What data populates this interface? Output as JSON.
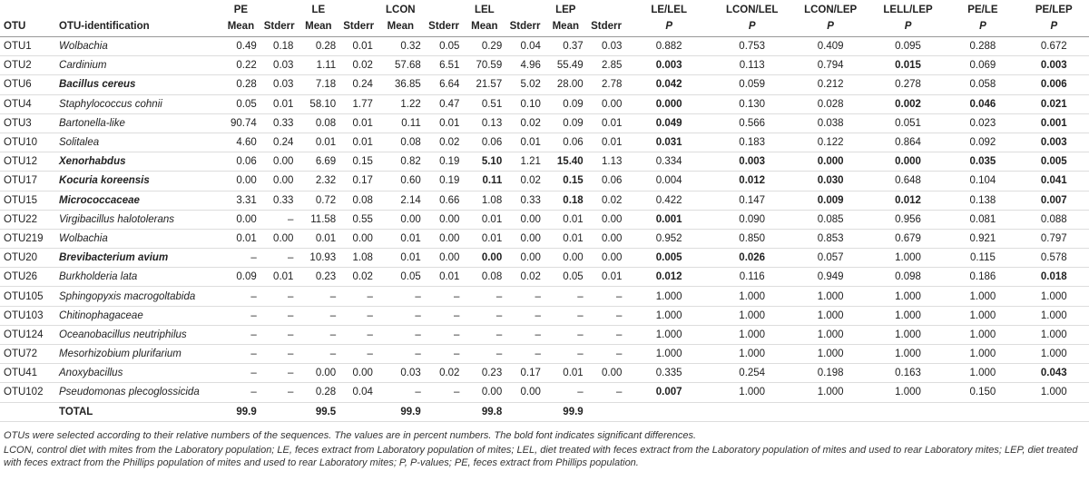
{
  "table": {
    "columns": [
      {
        "bottom": "OTU"
      },
      {
        "bottom": "OTU-identification"
      },
      {
        "top": "PE",
        "bottom": "Mean"
      },
      {
        "bottom": "Stderr"
      },
      {
        "top": "LE",
        "bottom": "Mean"
      },
      {
        "bottom": "Stderr"
      },
      {
        "top": "LCON",
        "bottom": "Mean"
      },
      {
        "bottom": "Stderr"
      },
      {
        "top": "LEL",
        "bottom": "Mean"
      },
      {
        "bottom": "Stderr"
      },
      {
        "top": "LEP",
        "bottom": "Mean"
      },
      {
        "bottom": "Stderr"
      },
      {
        "top": "LE/LEL",
        "bottom": "P"
      },
      {
        "top": "LCON/LEL",
        "bottom": "P"
      },
      {
        "top": "LCON/LEP",
        "bottom": "P"
      },
      {
        "top": "LELL/LEP",
        "bottom": "P"
      },
      {
        "top": "PE/LE",
        "bottom": "P"
      },
      {
        "top": "PE/LEP",
        "bottom": "P"
      }
    ],
    "rows": [
      {
        "otu": "OTU1",
        "name": "Wolbachia",
        "values": [
          "0.49",
          "0.18",
          "0.28",
          "0.01",
          "0.32",
          "0.05",
          "0.29",
          "0.04",
          "0.37",
          "0.03",
          "0.882",
          "0.753",
          "0.409",
          "0.095",
          "0.288",
          "0.672"
        ]
      },
      {
        "otu": "OTU2",
        "name": "Cardinium",
        "values": [
          "0.22",
          "0.03",
          "1.11",
          "0.02",
          "57.68",
          "6.51",
          "70.59",
          "4.96",
          "55.49",
          "2.85",
          {
            "text": "0.003",
            "bold": true
          },
          "0.113",
          "0.794",
          {
            "text": "0.015",
            "bold": true
          },
          "0.069",
          {
            "text": "0.003",
            "bold": true
          }
        ]
      },
      {
        "otu": "OTU6",
        "name": {
          "text": "Bacillus cereus",
          "bold": true
        },
        "values": [
          "0.28",
          "0.03",
          "7.18",
          "0.24",
          "36.85",
          "6.64",
          "21.57",
          "5.02",
          "28.00",
          "2.78",
          {
            "text": "0.042",
            "bold": true
          },
          "0.059",
          "0.212",
          "0.278",
          "0.058",
          {
            "text": "0.006",
            "bold": true
          }
        ]
      },
      {
        "otu": "OTU4",
        "name": "Staphylococcus cohnii",
        "values": [
          "0.05",
          "0.01",
          "58.10",
          "1.77",
          "1.22",
          "0.47",
          "0.51",
          "0.10",
          "0.09",
          "0.00",
          {
            "text": "0.000",
            "bold": true
          },
          "0.130",
          "0.028",
          {
            "text": "0.002",
            "bold": true
          },
          {
            "text": "0.046",
            "bold": true
          },
          {
            "text": "0.021",
            "bold": true
          }
        ]
      },
      {
        "otu": "OTU3",
        "name": "Bartonella-like",
        "values": [
          "90.74",
          "0.33",
          "0.08",
          "0.01",
          "0.11",
          "0.01",
          "0.13",
          "0.02",
          "0.09",
          "0.01",
          {
            "text": "0.049",
            "bold": true
          },
          "0.566",
          "0.038",
          "0.051",
          "0.023",
          {
            "text": "0.001",
            "bold": true
          }
        ]
      },
      {
        "otu": "OTU10",
        "name": "Solitalea",
        "values": [
          "4.60",
          "0.24",
          "0.01",
          "0.01",
          "0.08",
          "0.02",
          "0.06",
          "0.01",
          "0.06",
          "0.01",
          {
            "text": "0.031",
            "bold": true
          },
          "0.183",
          "0.122",
          "0.864",
          "0.092",
          {
            "text": "0.003",
            "bold": true
          }
        ]
      },
      {
        "otu": "OTU12",
        "name": {
          "text": "Xenorhabdus",
          "bold": true
        },
        "values": [
          "0.06",
          "0.00",
          "6.69",
          "0.15",
          "0.82",
          "0.19",
          {
            "text": "5.10",
            "bold": true
          },
          "1.21",
          {
            "text": "15.40",
            "bold": true
          },
          "1.13",
          "0.334",
          {
            "text": "0.003",
            "bold": true
          },
          {
            "text": "0.000",
            "bold": true
          },
          {
            "text": "0.000",
            "bold": true
          },
          {
            "text": "0.035",
            "bold": true
          },
          {
            "text": "0.005",
            "bold": true
          }
        ]
      },
      {
        "otu": "OTU17",
        "name": {
          "text": "Kocuria koreensis",
          "bold": true
        },
        "values": [
          "0.00",
          "0.00",
          "2.32",
          "0.17",
          "0.60",
          "0.19",
          {
            "text": "0.11",
            "bold": true
          },
          "0.02",
          {
            "text": "0.15",
            "bold": true
          },
          "0.06",
          "0.004",
          {
            "text": "0.012",
            "bold": true
          },
          {
            "text": "0.030",
            "bold": true
          },
          "0.648",
          "0.104",
          {
            "text": "0.041",
            "bold": true
          }
        ]
      },
      {
        "otu": "OTU15",
        "name": {
          "text": "Micrococcaceae",
          "bold": true
        },
        "values": [
          "3.31",
          "0.33",
          "0.72",
          "0.08",
          "2.14",
          "0.66",
          "1.08",
          "0.33",
          {
            "text": "0.18",
            "bold": true
          },
          "0.02",
          "0.422",
          "0.147",
          {
            "text": "0.009",
            "bold": true
          },
          {
            "text": "0.012",
            "bold": true
          },
          "0.138",
          {
            "text": "0.007",
            "bold": true
          }
        ]
      },
      {
        "otu": "OTU22",
        "name": "Virgibacillus halotolerans",
        "values": [
          "0.00",
          "–",
          "11.58",
          "0.55",
          "0.00",
          "0.00",
          "0.01",
          "0.00",
          "0.01",
          "0.00",
          {
            "text": "0.001",
            "bold": true
          },
          "0.090",
          "0.085",
          "0.956",
          "0.081",
          "0.088"
        ]
      },
      {
        "otu": "OTU219",
        "name": "Wolbachia",
        "values": [
          "0.01",
          "0.00",
          "0.01",
          "0.00",
          "0.01",
          "0.00",
          "0.01",
          "0.00",
          "0.01",
          "0.00",
          "0.952",
          "0.850",
          "0.853",
          "0.679",
          "0.921",
          "0.797"
        ]
      },
      {
        "otu": "OTU20",
        "name": {
          "text": "Brevibacterium avium",
          "bold": true
        },
        "values": [
          "–",
          "–",
          "10.93",
          "1.08",
          "0.01",
          "0.00",
          {
            "text": "0.00",
            "bold": true
          },
          "0.00",
          "0.00",
          "0.00",
          {
            "text": "0.005",
            "bold": true
          },
          {
            "text": "0.026",
            "bold": true
          },
          "0.057",
          "1.000",
          "0.115",
          "0.578"
        ]
      },
      {
        "otu": "OTU26",
        "name": "Burkholderia lata",
        "values": [
          "0.09",
          "0.01",
          "0.23",
          "0.02",
          "0.05",
          "0.01",
          "0.08",
          "0.02",
          "0.05",
          "0.01",
          {
            "text": "0.012",
            "bold": true
          },
          "0.116",
          "0.949",
          "0.098",
          "0.186",
          {
            "text": "0.018",
            "bold": true
          }
        ]
      },
      {
        "otu": "OTU105",
        "name": "Sphingopyxis macrogoltabida",
        "values": [
          "–",
          "–",
          "–",
          "–",
          "–",
          "–",
          "–",
          "–",
          "–",
          "–",
          "1.000",
          "1.000",
          "1.000",
          "1.000",
          "1.000",
          "1.000"
        ]
      },
      {
        "otu": "OTU103",
        "name": "Chitinophagaceae",
        "values": [
          "–",
          "–",
          "–",
          "–",
          "–",
          "–",
          "–",
          "–",
          "–",
          "–",
          "1.000",
          "1.000",
          "1.000",
          "1.000",
          "1.000",
          "1.000"
        ]
      },
      {
        "otu": "OTU124",
        "name": "Oceanobacillus neutriphilus",
        "values": [
          "–",
          "–",
          "–",
          "–",
          "–",
          "–",
          "–",
          "–",
          "–",
          "–",
          "1.000",
          "1.000",
          "1.000",
          "1.000",
          "1.000",
          "1.000"
        ]
      },
      {
        "otu": "OTU72",
        "name": "Mesorhizobium plurifarium",
        "values": [
          "–",
          "–",
          "–",
          "–",
          "–",
          "–",
          "–",
          "–",
          "–",
          "–",
          "1.000",
          "1.000",
          "1.000",
          "1.000",
          "1.000",
          "1.000"
        ]
      },
      {
        "otu": "OTU41",
        "name": "Anoxybacillus",
        "values": [
          "–",
          "–",
          "0.00",
          "0.00",
          "0.03",
          "0.02",
          "0.23",
          "0.17",
          "0.01",
          "0.00",
          "0.335",
          "0.254",
          "0.198",
          "0.163",
          "1.000",
          {
            "text": "0.043",
            "bold": true
          }
        ]
      },
      {
        "otu": "OTU102",
        "name": "Pseudomonas plecoglossicida",
        "values": [
          "–",
          "–",
          "0.28",
          "0.04",
          "–",
          "–",
          "0.00",
          "0.00",
          "–",
          "–",
          {
            "text": "0.007",
            "bold": true
          },
          "1.000",
          "1.000",
          "1.000",
          "0.150",
          "1.000"
        ]
      }
    ],
    "total": {
      "label": "TOTAL",
      "values": [
        "99.9",
        null,
        "99.5",
        null,
        "99.9",
        null,
        "99.8",
        null,
        "99.9",
        null,
        null,
        null,
        null,
        null,
        null,
        null
      ]
    }
  },
  "notes": [
    "OTUs were selected according to their relative numbers of the sequences. The values are in percent numbers. The bold font indicates significant differences.",
    "LCON, control diet with mites from the Laboratory population; LE, feces extract from Laboratory population of mites; LEL, diet treated with feces extract from the Laboratory population of mites and used to rear Laboratory mites; LEP, diet treated with feces extract from the Phillips population of mites and used to rear Laboratory mites; P, P-values; PE, feces extract from Phillips population."
  ]
}
